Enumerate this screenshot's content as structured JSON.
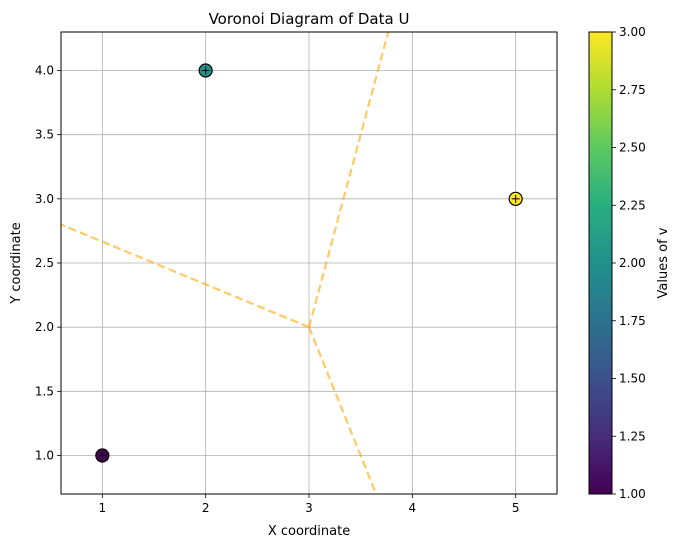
{
  "chart_data": {
    "type": "scatter",
    "title": "Voronoi Diagram of Data U",
    "xlabel": "X coordinate",
    "ylabel": "Y coordinate",
    "xlim": [
      0.6,
      5.4
    ],
    "ylim": [
      0.7,
      4.3
    ],
    "xticks": [
      1,
      2,
      3,
      4,
      5
    ],
    "yticks": [
      1.0,
      1.5,
      2.0,
      2.5,
      3.0,
      3.5,
      4.0
    ],
    "grid": true,
    "points": [
      {
        "x": 1,
        "y": 1,
        "v": 1,
        "color": "#440154"
      },
      {
        "x": 2,
        "y": 4,
        "v": 2,
        "color": "#21918c"
      },
      {
        "x": 5,
        "y": 3,
        "v": 3,
        "color": "#fde725"
      }
    ],
    "voronoi_vertex": {
      "x": 3,
      "y": 2
    },
    "voronoi_edges": [
      {
        "from": [
          3,
          2
        ],
        "to": [
          0.6,
          2.8
        ]
      },
      {
        "from": [
          3,
          2
        ],
        "to": [
          3.767,
          4.3
        ]
      },
      {
        "from": [
          3,
          2
        ],
        "to": [
          3.65,
          0.7
        ]
      }
    ],
    "edge_color": "#ffa500",
    "colorbar": {
      "label": "Values of v",
      "min": 1.0,
      "max": 3.0,
      "ticks": [
        1.0,
        1.25,
        1.5,
        1.75,
        2.0,
        2.25,
        2.5,
        2.75,
        3.0
      ],
      "colormap": "viridis"
    }
  }
}
